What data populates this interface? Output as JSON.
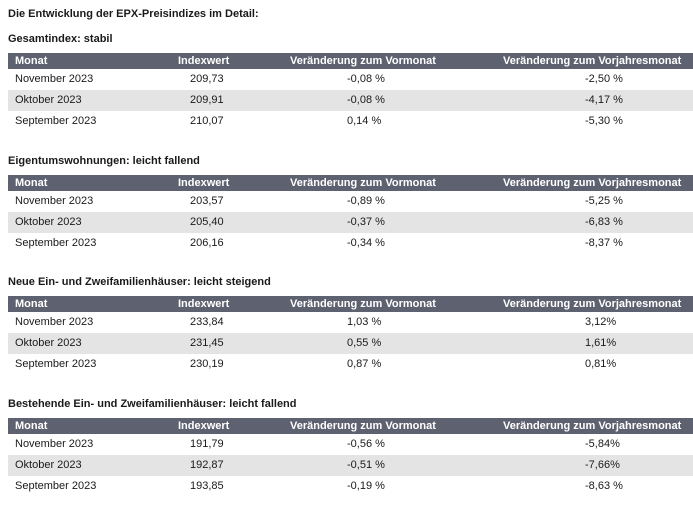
{
  "page_title": "Die Entwicklung der EPX-Preisindizes im Detail:",
  "columns": {
    "monat": "Monat",
    "indexwert": "Indexwert",
    "vormonat": "Veränderung zum Vormonat",
    "vorjahresmonat": "Veränderung zum Vorjahresmonat"
  },
  "sections": [
    {
      "title": "Gesamtindex: stabil",
      "rows": [
        {
          "monat": "November 2023",
          "indexwert": "209,73",
          "vormonat": "-0,08 %",
          "vorjahresmonat": "-2,50 %"
        },
        {
          "monat": "Oktober 2023",
          "indexwert": "209,91",
          "vormonat": "-0,08 %",
          "vorjahresmonat": "-4,17 %"
        },
        {
          "monat": "September 2023",
          "indexwert": "210,07",
          "vormonat": "0,14 %",
          "vorjahresmonat": "-5,30 %"
        }
      ]
    },
    {
      "title": "Eigentumswohnungen: leicht fallend",
      "rows": [
        {
          "monat": "November 2023",
          "indexwert": "203,57",
          "vormonat": "-0,89 %",
          "vorjahresmonat": "-5,25 %"
        },
        {
          "monat": "Oktober 2023",
          "indexwert": "205,40",
          "vormonat": "-0,37 %",
          "vorjahresmonat": "-6,83 %"
        },
        {
          "monat": "September 2023",
          "indexwert": "206,16",
          "vormonat": "-0,34 %",
          "vorjahresmonat": "-8,37 %"
        }
      ]
    },
    {
      "title": "Neue Ein- und Zweifamilienhäuser: leicht steigend",
      "rows": [
        {
          "monat": "November 2023",
          "indexwert": "233,84",
          "vormonat": "1,03 %",
          "vorjahresmonat": "3,12%"
        },
        {
          "monat": "Oktober 2023",
          "indexwert": "231,45",
          "vormonat": "0,55 %",
          "vorjahresmonat": "1,61%"
        },
        {
          "monat": "September 2023",
          "indexwert": "230,19",
          "vormonat": "0,87 %",
          "vorjahresmonat": "0,81%"
        }
      ]
    },
    {
      "title": "Bestehende Ein- und Zweifamilienhäuser: leicht fallend",
      "rows": [
        {
          "monat": "November 2023",
          "indexwert": "191,79",
          "vormonat": "-0,56 %",
          "vorjahresmonat": "-5,84%"
        },
        {
          "monat": "Oktober 2023",
          "indexwert": "192,87",
          "vormonat": "-0,51 %",
          "vorjahresmonat": "-7,66%"
        },
        {
          "monat": "September 2023",
          "indexwert": "193,85",
          "vormonat": "-0,19 %",
          "vorjahresmonat": "-8,63 %"
        }
      ]
    }
  ]
}
